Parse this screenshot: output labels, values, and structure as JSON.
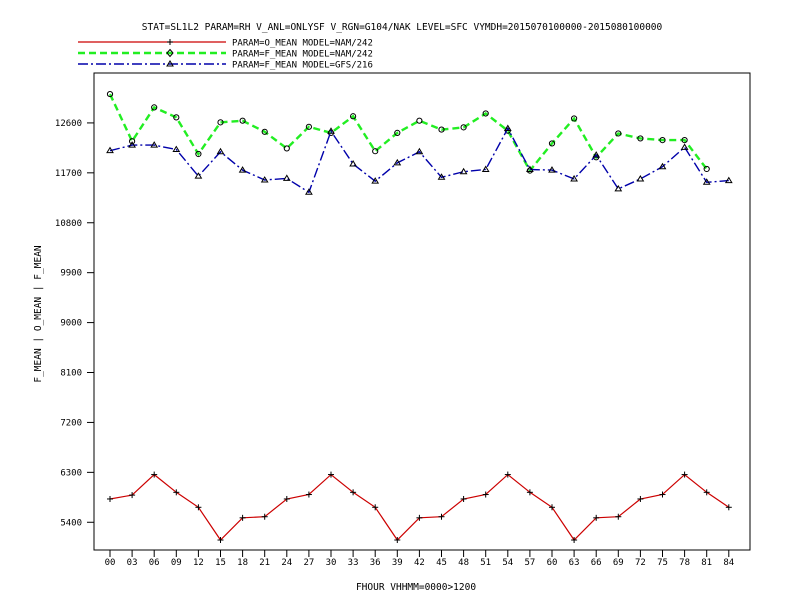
{
  "chart_data": {
    "type": "line",
    "title": "STAT=SL1L2 PARAM=RH V_ANL=ONLYSF V_RGN=G104/NAK LEVEL=SFC VYMDH=2015070100000-2015080100000",
    "xlabel": "FHOUR VHHMM=0000>1200",
    "ylabel": "F_MEAN | O_MEAN | F_MEAN",
    "ylim": [
      4900,
      13500
    ],
    "yticks": [
      5400,
      6300,
      7200,
      8100,
      9000,
      9900,
      10800,
      11700,
      12600
    ],
    "categories": [
      "00",
      "03",
      "06",
      "09",
      "12",
      "15",
      "18",
      "21",
      "24",
      "27",
      "30",
      "33",
      "36",
      "39",
      "42",
      "45",
      "48",
      "51",
      "54",
      "57",
      "60",
      "63",
      "66",
      "69",
      "72",
      "75",
      "78",
      "81",
      "84"
    ],
    "series": [
      {
        "name": "PARAM=O_MEAN MODEL=NAM/242",
        "color": "#cc0000",
        "dash": "solid",
        "marker": "plus",
        "values": [
          5820,
          5890,
          6260,
          5940,
          5670,
          5080,
          5480,
          5500,
          5820,
          5900,
          6260,
          5940,
          5670,
          5080,
          5480,
          5500,
          5820,
          5900,
          6260,
          5940,
          5670,
          5080,
          5480,
          5500,
          5820,
          5900,
          6260,
          5940,
          5670
        ]
      },
      {
        "name": "PARAM=F_MEAN MODEL=NAM/242",
        "color": "#22ee22",
        "dash": "dashed",
        "marker": "circle",
        "values": [
          13120,
          12270,
          12880,
          12700,
          12040,
          12610,
          12640,
          12440,
          12140,
          12530,
          12420,
          12720,
          12090,
          12420,
          12640,
          12480,
          12520,
          12770,
          12460,
          11740,
          12230,
          12680,
          11980,
          12410,
          12320,
          12290,
          12290,
          11770,
          null
        ]
      },
      {
        "name": "PARAM=F_MEAN MODEL=GFS/216",
        "color": "#0000aa",
        "dash": "dashdot",
        "marker": "triangle",
        "values": [
          12100,
          12200,
          12200,
          12120,
          11640,
          12080,
          11750,
          11570,
          11600,
          11350,
          12450,
          11860,
          11550,
          11880,
          12080,
          11620,
          11720,
          11760,
          12500,
          11760,
          11750,
          11590,
          12020,
          11410,
          11590,
          11810,
          12160,
          11530,
          11560
        ]
      }
    ],
    "grid": false,
    "legend_position": "top-left"
  }
}
